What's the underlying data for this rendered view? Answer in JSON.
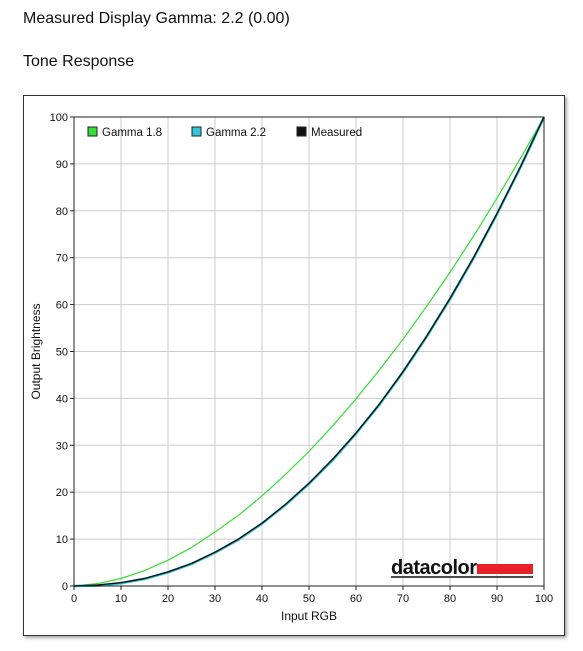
{
  "header": {
    "title": "Measured Display Gamma: 2.2 (0.00)",
    "subtitle": "Tone Response"
  },
  "colors": {
    "gamma18": "#33dd33",
    "gamma22": "#2ec8d8",
    "measured": "#111111",
    "grid": "#cccccc",
    "logo_bar": "#e8202a"
  },
  "logo": {
    "text": "datacolor"
  },
  "chart_data": {
    "type": "line",
    "xlabel": "Input RGB",
    "ylabel": "Output Brightness",
    "xlim": [
      0,
      100
    ],
    "ylim": [
      0,
      100
    ],
    "xticks": [
      0,
      10,
      20,
      30,
      40,
      50,
      60,
      70,
      80,
      90,
      100
    ],
    "yticks": [
      0,
      10,
      20,
      30,
      40,
      50,
      60,
      70,
      80,
      90,
      100
    ],
    "grid": true,
    "legend_position": "top-left",
    "series": [
      {
        "name": "Gamma 1.8",
        "color": "#33dd33",
        "x": [
          0,
          5,
          10,
          15,
          20,
          25,
          30,
          35,
          40,
          45,
          50,
          55,
          60,
          65,
          70,
          75,
          80,
          85,
          90,
          95,
          100
        ],
        "y": [
          0,
          0.5,
          1.6,
          3.3,
          5.5,
          8.2,
          11.5,
          15.1,
          19.2,
          23.8,
          28.7,
          34.1,
          39.9,
          46.1,
          52.6,
          59.6,
          66.9,
          74.6,
          82.7,
          91.2,
          100
        ]
      },
      {
        "name": "Gamma 2.2",
        "color": "#2ec8d8",
        "x": [
          0,
          5,
          10,
          15,
          20,
          25,
          30,
          35,
          40,
          45,
          50,
          55,
          60,
          65,
          70,
          75,
          80,
          85,
          90,
          95,
          100
        ],
        "y": [
          0,
          0.1,
          0.6,
          1.5,
          2.9,
          4.7,
          7.1,
          9.9,
          13.3,
          17.3,
          21.8,
          26.8,
          32.5,
          38.7,
          45.6,
          53.1,
          61.2,
          69.9,
          79.3,
          89.3,
          100
        ]
      },
      {
        "name": "Measured",
        "color": "#111111",
        "x": [
          0,
          5,
          10,
          15,
          20,
          25,
          30,
          35,
          40,
          45,
          50,
          55,
          60,
          65,
          70,
          75,
          80,
          85,
          90,
          95,
          100
        ],
        "y": [
          0,
          0.2,
          0.7,
          1.6,
          3.0,
          4.8,
          7.2,
          10.0,
          13.4,
          17.4,
          21.9,
          27.0,
          32.6,
          38.8,
          45.7,
          53.2,
          61.3,
          70.0,
          79.4,
          89.4,
          100
        ]
      }
    ]
  }
}
